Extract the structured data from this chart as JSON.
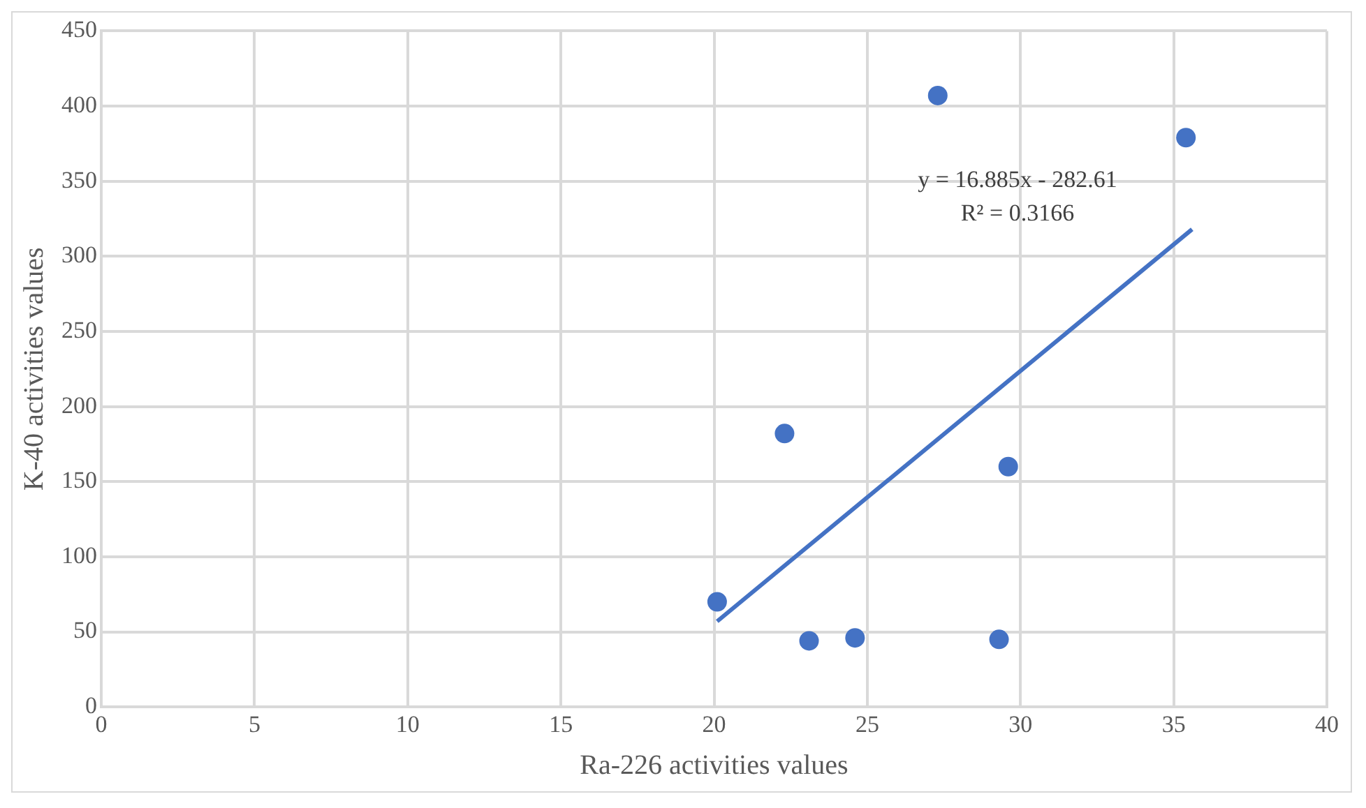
{
  "chart_data": {
    "type": "scatter",
    "xlabel": "Ra-226 activities values",
    "ylabel": "K-40 activities values",
    "xlim": [
      0,
      40
    ],
    "xticks": [
      0,
      5,
      10,
      15,
      20,
      25,
      30,
      35,
      40
    ],
    "ylim": [
      0,
      450
    ],
    "yticks": [
      0,
      50,
      100,
      150,
      200,
      250,
      300,
      350,
      400,
      450
    ],
    "grid": true,
    "legend": false,
    "marker": "circle",
    "series": [
      {
        "type": "scatter",
        "color": "#4472c4",
        "x": [
          20.1,
          22.3,
          23.1,
          24.6,
          27.3,
          29.6,
          29.3,
          35.4
        ],
        "values": [
          70,
          182,
          44,
          46,
          407,
          160,
          45,
          379
        ]
      },
      {
        "type": "line",
        "color": "#4472c4",
        "line_style": "solid",
        "marker": "none",
        "x": [
          20.1,
          35.6
        ],
        "values": [
          57,
          318
        ]
      }
    ],
    "annotations": [
      "y = 16.885x - 282.61",
      "R² = 0.3166"
    ]
  }
}
